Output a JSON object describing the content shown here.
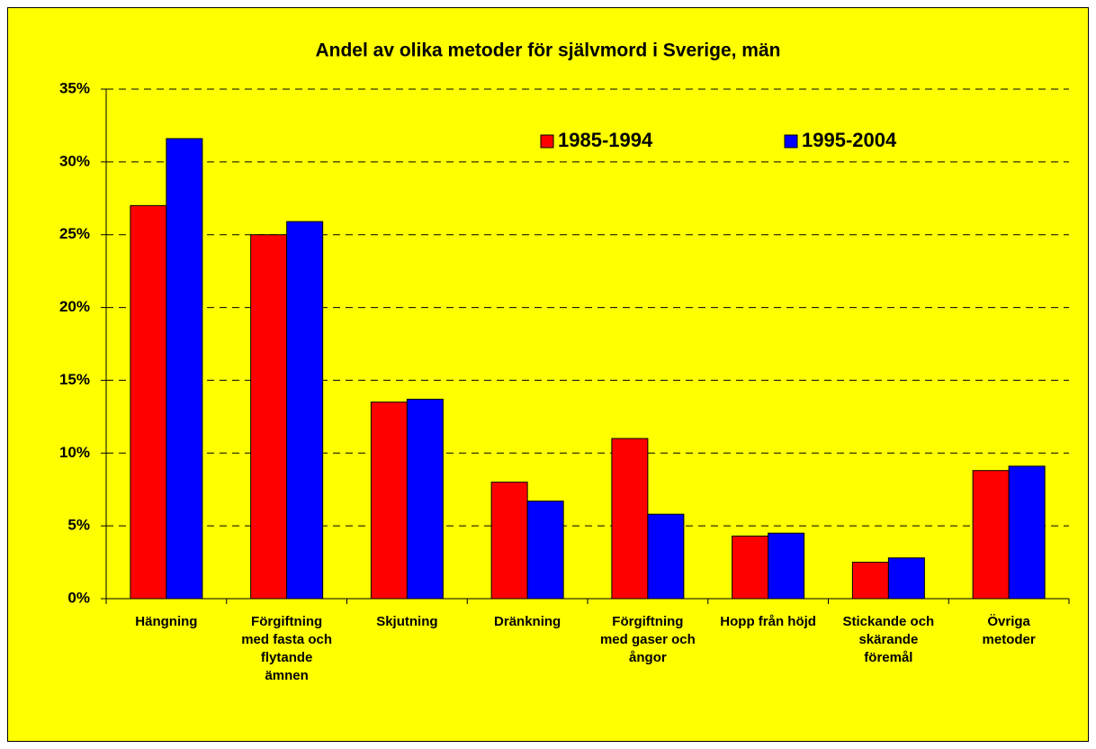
{
  "chart_data": {
    "type": "bar",
    "title": "Andel av olika metoder för självmord i Sverige, män",
    "categories": [
      "Hängning",
      "Förgiftning\nmed fasta och\nflytande\nämnen",
      "Skjutning",
      "Dränkning",
      "Förgiftning\nmed gaser och\nångor",
      "Hopp från höjd",
      "Stickande och\nskärande\nföremål",
      "Övriga\nmetoder"
    ],
    "series": [
      {
        "name": "1985-1994",
        "color": "#ff0000",
        "values": [
          27,
          25,
          13.5,
          8,
          11,
          4.3,
          2.5,
          8.8
        ]
      },
      {
        "name": "1995-2004",
        "color": "#0000ff",
        "values": [
          31.6,
          25.9,
          13.7,
          6.7,
          5.8,
          4.5,
          2.8,
          9.1
        ]
      }
    ],
    "ylim": [
      0,
      35
    ],
    "yticks": [
      {
        "value": 0,
        "label": "0%"
      },
      {
        "value": 5,
        "label": "5%"
      },
      {
        "value": 10,
        "label": "10%"
      },
      {
        "value": 15,
        "label": "15%"
      },
      {
        "value": 20,
        "label": "20%"
      },
      {
        "value": 25,
        "label": "25%"
      },
      {
        "value": 30,
        "label": "30%"
      },
      {
        "value": 35,
        "label": "35%"
      }
    ],
    "grid": true,
    "legend": "top-right",
    "background": "#ffff00"
  }
}
